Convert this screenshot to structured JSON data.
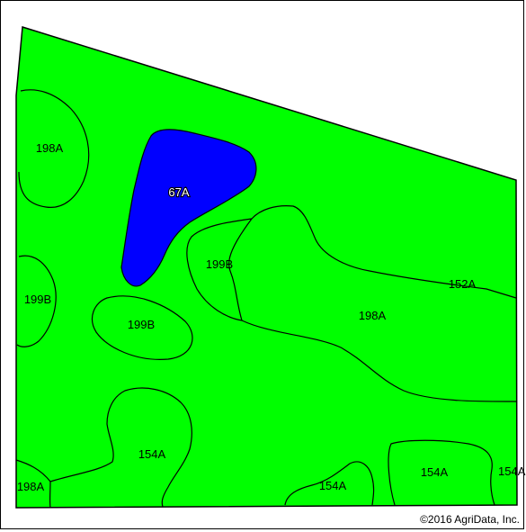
{
  "colors": {
    "field": "#00ff00",
    "water": "#0000ff",
    "boundary": "#000000",
    "background": "#ffffff"
  },
  "map": {
    "units": {
      "u198a_nw": "198A",
      "u67a": "67A",
      "u199b_center": "199B",
      "u152a": "152A",
      "u198a_center": "198A",
      "u199b_west": "199B",
      "u199b_small": "199B",
      "u154a_center": "154A",
      "u198a_sw": "198A",
      "u154a_bottom": "154A",
      "u154a_br": "154A",
      "u154a_edge": "154A"
    }
  },
  "copyright": "©2016 AgriData, Inc."
}
